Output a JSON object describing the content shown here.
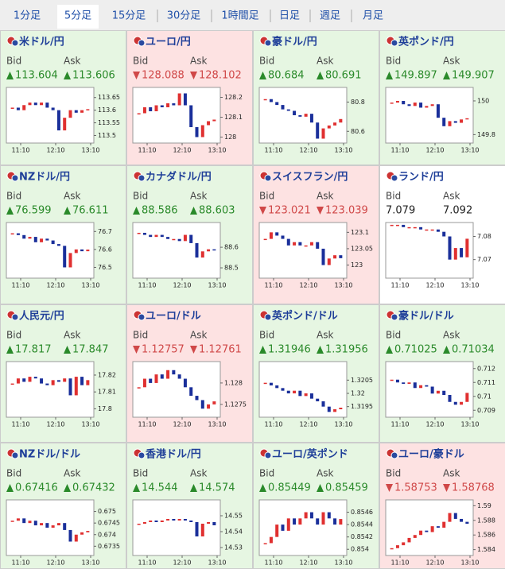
{
  "tabs": [
    "1分足",
    "5分足",
    "15分足",
    "30分足",
    "1時間足",
    "日足",
    "週足",
    "月足"
  ],
  "active_tab": 1,
  "bid_label": "Bid",
  "ask_label": "Ask",
  "time_labels": [
    "11:10",
    "12:10",
    "13:10"
  ],
  "tiles": [
    {
      "title": "米ドル/円",
      "direction": "up",
      "bid": 113.604,
      "ask": 113.606,
      "ylim": [
        113.47,
        113.69
      ],
      "yticks": [
        113.65,
        113.6,
        113.55,
        113.5
      ],
      "closes": [
        113.61,
        113.6,
        113.62,
        113.63,
        113.62,
        113.63,
        113.61,
        113.6,
        113.52,
        113.57,
        113.6,
        113.59,
        113.6,
        113.604
      ]
    },
    {
      "title": "ユーロ/円",
      "direction": "down",
      "bid": 128.088,
      "ask": 128.102,
      "ylim": [
        127.97,
        128.25
      ],
      "yticks": [
        128.2,
        128.1,
        128
      ],
      "closes": [
        128.12,
        128.15,
        128.13,
        128.16,
        128.15,
        128.17,
        128.16,
        128.22,
        128.16,
        128.05,
        128.0,
        128.06,
        128.08,
        128.088
      ]
    },
    {
      "title": "豪ドル/円",
      "direction": "up",
      "bid": 80.684,
      "ask": 80.691,
      "ylim": [
        80.52,
        80.9
      ],
      "yticks": [
        80.8,
        80.6
      ],
      "closes": [
        80.82,
        80.8,
        80.78,
        80.75,
        80.74,
        80.71,
        80.7,
        80.72,
        80.66,
        80.55,
        80.62,
        80.64,
        80.66,
        80.684
      ]
    },
    {
      "title": "英ポンド/円",
      "direction": "up",
      "bid": 149.897,
      "ask": 149.907,
      "ylim": [
        149.75,
        150.08
      ],
      "yticks": [
        150,
        149.8
      ],
      "closes": [
        149.99,
        150.0,
        149.98,
        149.97,
        149.99,
        149.96,
        149.97,
        149.98,
        149.9,
        149.85,
        149.88,
        149.87,
        149.89,
        149.897
      ]
    },
    {
      "title": "NZドル/円",
      "direction": "up",
      "bid": 76.599,
      "ask": 76.611,
      "ylim": [
        76.44,
        76.75
      ],
      "yticks": [
        76.7,
        76.6,
        76.5
      ],
      "closes": [
        76.69,
        76.68,
        76.66,
        76.67,
        76.64,
        76.66,
        76.65,
        76.63,
        76.62,
        76.5,
        76.58,
        76.6,
        76.59,
        76.599
      ]
    },
    {
      "title": "カナダドル/円",
      "direction": "up",
      "bid": 88.586,
      "ask": 88.603,
      "ylim": [
        88.45,
        88.72
      ],
      "yticks": [
        88.6,
        88.5
      ],
      "closes": [
        88.67,
        88.66,
        88.65,
        88.66,
        88.65,
        88.64,
        88.64,
        88.63,
        88.66,
        88.62,
        88.55,
        88.58,
        88.59,
        88.586
      ]
    },
    {
      "title": "スイスフラン/円",
      "direction": "down",
      "bid": 123.021,
      "ask": 123.039,
      "ylim": [
        122.96,
        123.13
      ],
      "yticks": [
        123.1,
        123.05,
        123
      ],
      "closes": [
        123.08,
        123.1,
        123.09,
        123.08,
        123.06,
        123.07,
        123.06,
        123.06,
        123.07,
        123.05,
        123.0,
        123.02,
        123.03,
        123.021
      ]
    },
    {
      "title": "ランド/円",
      "direction": "none",
      "bid": 7.079,
      "ask": 7.092,
      "ylim": [
        7.062,
        7.086
      ],
      "yticks": [
        7.08,
        7.07
      ],
      "closes": [
        7.085,
        7.085,
        7.084,
        7.084,
        7.084,
        7.083,
        7.083,
        7.083,
        7.082,
        7.08,
        7.07,
        7.075,
        7.071,
        7.079
      ]
    },
    {
      "title": "人民元/円",
      "direction": "up",
      "bid": 17.817,
      "ask": 17.847,
      "ylim": [
        17.795,
        17.828
      ],
      "yticks": [
        17.82,
        17.81,
        17.8
      ],
      "closes": [
        17.815,
        17.818,
        17.816,
        17.819,
        17.818,
        17.815,
        17.814,
        17.817,
        17.816,
        17.818,
        17.808,
        17.819,
        17.814,
        17.817
      ]
    },
    {
      "title": "ユーロ/ドル",
      "direction": "down",
      "bid": 1.12757,
      "ask": 1.12761,
      "ylim": [
        1.1272,
        1.1285
      ],
      "yticks": [
        1.128,
        1.1275
      ],
      "closes": [
        1.1279,
        1.1281,
        1.128,
        1.1282,
        1.1281,
        1.1283,
        1.1282,
        1.1281,
        1.1279,
        1.1277,
        1.1276,
        1.1274,
        1.1275,
        1.12757
      ]
    },
    {
      "title": "英ポンド/ドル",
      "direction": "up",
      "bid": 1.31946,
      "ask": 1.31956,
      "ylim": [
        1.3191,
        1.3212
      ],
      "yticks": [
        1.3205,
        1.32,
        1.3195
      ],
      "closes": [
        1.3204,
        1.3203,
        1.3202,
        1.3201,
        1.32,
        1.3201,
        1.3199,
        1.32,
        1.3198,
        1.3197,
        1.3195,
        1.3193,
        1.3194,
        1.31946
      ]
    },
    {
      "title": "豪ドル/ドル",
      "direction": "up",
      "bid": 0.71025,
      "ask": 0.71034,
      "ylim": [
        0.7085,
        0.7125
      ],
      "yticks": [
        0.712,
        0.711,
        0.71,
        0.709
      ],
      "closes": [
        0.7112,
        0.711,
        0.7109,
        0.711,
        0.7106,
        0.7108,
        0.7107,
        0.7102,
        0.7104,
        0.7101,
        0.7096,
        0.7094,
        0.7096,
        0.71025
      ]
    },
    {
      "title": "NZドル/ドル",
      "direction": "up",
      "bid": 0.67416,
      "ask": 0.67432,
      "ylim": [
        0.6731,
        0.6755
      ],
      "yticks": [
        0.675,
        0.6745,
        0.674,
        0.6735
      ],
      "closes": [
        0.6746,
        0.6747,
        0.6745,
        0.6746,
        0.6744,
        0.6745,
        0.6743,
        0.6744,
        0.6745,
        0.6742,
        0.6737,
        0.674,
        0.6741,
        0.67416
      ]
    },
    {
      "title": "香港ドル/円",
      "direction": "up",
      "bid": 14.544,
      "ask": 14.574,
      "ylim": [
        14.525,
        14.56
      ],
      "yticks": [
        14.55,
        14.54,
        14.53
      ],
      "closes": [
        14.545,
        14.546,
        14.547,
        14.546,
        14.547,
        14.548,
        14.547,
        14.548,
        14.547,
        14.546,
        14.537,
        14.545,
        14.546,
        14.544
      ]
    },
    {
      "title": "ユーロ/英ポンド",
      "direction": "up",
      "bid": 0.85449,
      "ask": 0.85459,
      "ylim": [
        0.8539,
        0.8548
      ],
      "yticks": [
        0.8546,
        0.8544,
        0.8542,
        0.854
      ],
      "closes": [
        0.8541,
        0.8542,
        0.8544,
        0.8543,
        0.8545,
        0.8544,
        0.8545,
        0.8546,
        0.8545,
        0.8544,
        0.8546,
        0.8545,
        0.8544,
        0.85449
      ]
    },
    {
      "title": "ユーロ/豪ドル",
      "direction": "down",
      "bid": 1.58753,
      "ask": 1.58768,
      "ylim": [
        1.5832,
        1.5908
      ],
      "yticks": [
        1.59,
        1.588,
        1.586,
        1.584
      ],
      "closes": [
        1.5842,
        1.5846,
        1.585,
        1.5856,
        1.586,
        1.5866,
        1.5864,
        1.5872,
        1.587,
        1.5878,
        1.589,
        1.5882,
        1.5878,
        1.58753
      ]
    }
  ]
}
